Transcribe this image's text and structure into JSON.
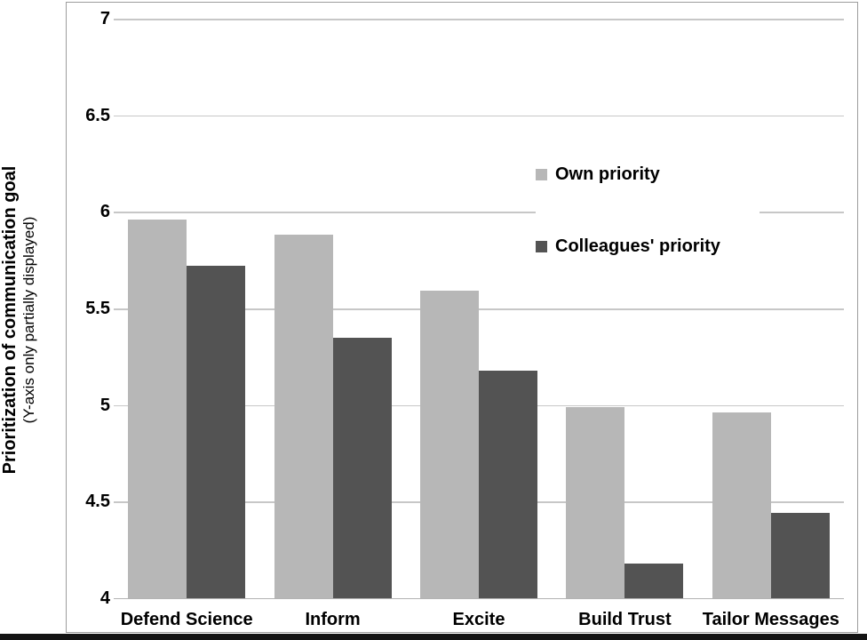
{
  "chart_data": {
    "type": "bar",
    "title": "",
    "xlabel": "",
    "ylabel": "Prioritization of communication goal",
    "ylabel_note": "(Y-axis only partially displayed)",
    "categories": [
      "Defend Science",
      "Inform",
      "Excite",
      "Build Trust",
      "Tailor Messages"
    ],
    "series": [
      {
        "name": "Own priority",
        "color": "#b7b7b7",
        "values": [
          5.96,
          5.88,
          5.59,
          4.99,
          4.96
        ]
      },
      {
        "name": "Colleagues' priority",
        "color": "#535353",
        "values": [
          5.72,
          5.35,
          5.18,
          4.18,
          4.44
        ]
      }
    ],
    "ylim": [
      4,
      7
    ],
    "yticks": [
      4,
      4.5,
      5,
      5.5,
      6,
      6.5,
      7
    ],
    "grid": true,
    "legend_position": "inside-upper-right",
    "gridline_color": "#c7c7c7",
    "axis_line_color": "#b3b3b3"
  }
}
